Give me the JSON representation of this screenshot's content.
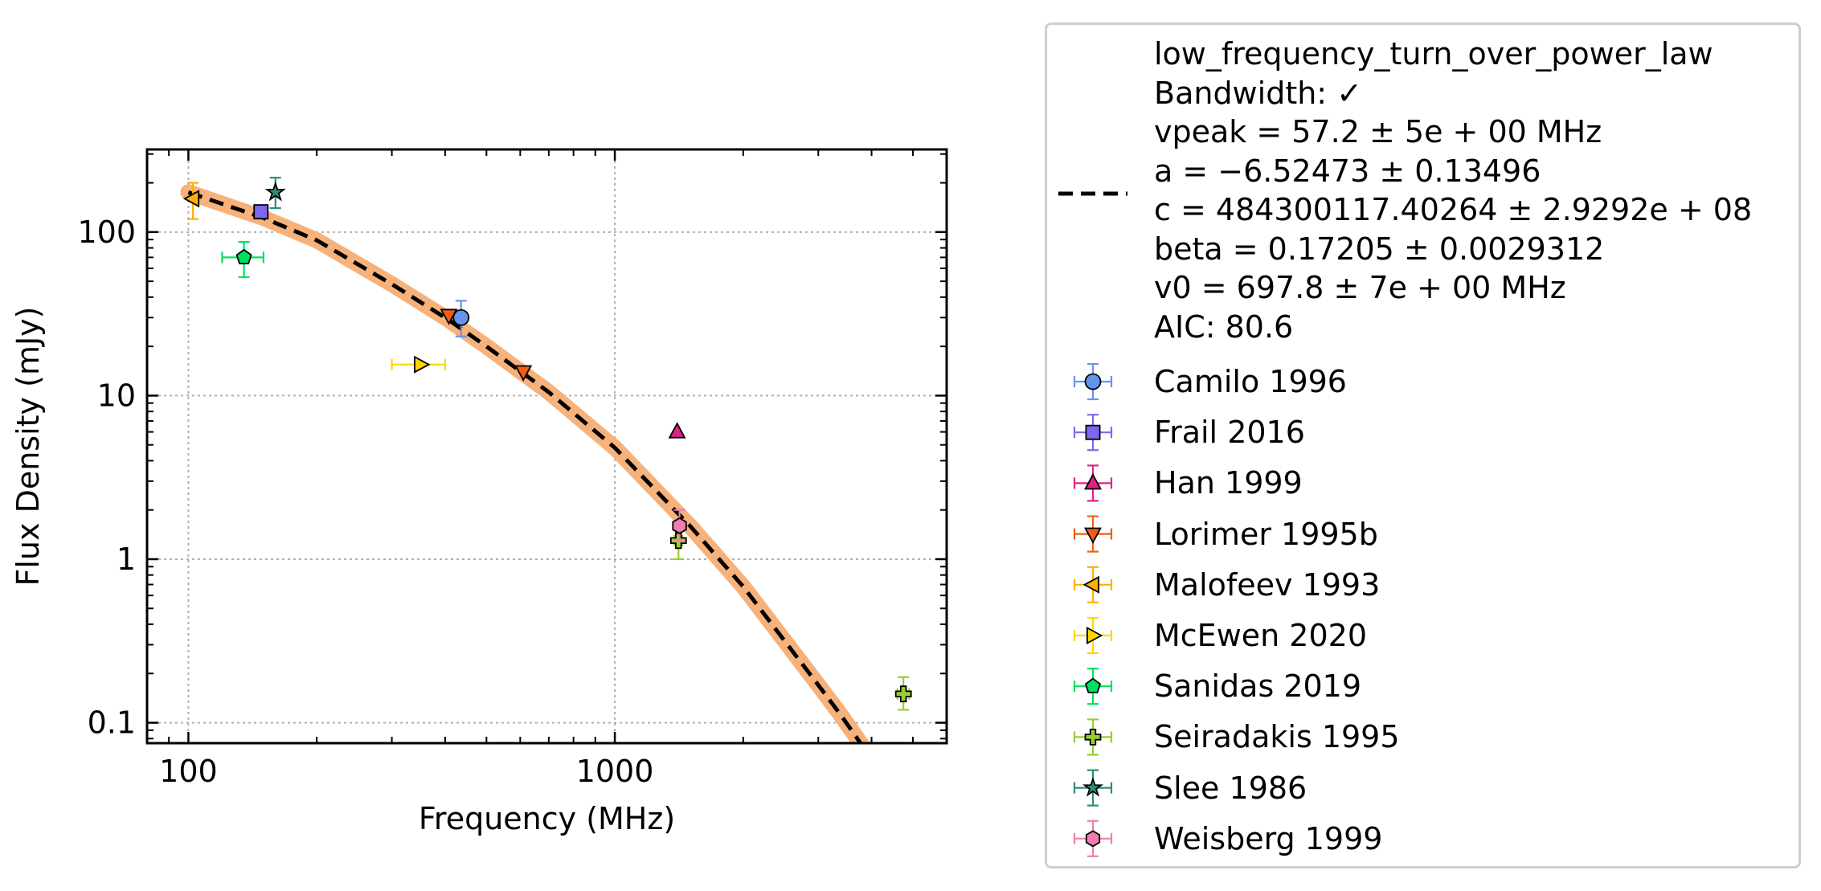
{
  "chart_data": {
    "type": "scatter",
    "xlabel": "Frequency (MHz)",
    "ylabel": "Flux Density (mJy)",
    "x_scale": "log",
    "y_scale": "log",
    "xlim": [
      80,
      6000
    ],
    "ylim": [
      0.075,
      320
    ],
    "grid": true,
    "legend_position": "outside-right",
    "x_ticks": [
      "100",
      "1000"
    ],
    "y_ticks": [
      "0.1",
      "1",
      "10",
      "100"
    ],
    "fit": {
      "label_lines": [
        "low_frequency_turn_over_power_law",
        "Bandwidth: ✓",
        "vpeak = 57.2 ± 5e + 00 MHz",
        "a = −6.52473 ± 0.13496",
        "c = 484300117.40264 ± 2.9292e + 08",
        "beta = 0.17205 ± 0.0029312",
        "v0 = 697.8 ± 7e + 00 MHz",
        "AIC: 80.6"
      ],
      "line_color": "#000000",
      "band_color": "#f7b27b",
      "points": [
        [
          100,
          175
        ],
        [
          150,
          122
        ],
        [
          200,
          89
        ],
        [
          300,
          48
        ],
        [
          400,
          30
        ],
        [
          500,
          20
        ],
        [
          700,
          10.5
        ],
        [
          1000,
          4.8
        ],
        [
          1500,
          1.6
        ],
        [
          2000,
          0.68
        ],
        [
          3000,
          0.17
        ],
        [
          3400,
          0.11
        ],
        [
          4000,
          0.06
        ]
      ]
    },
    "series": [
      {
        "name": "Camilo 1996",
        "marker": "circle",
        "color": "#6495ED",
        "points": [
          {
            "x": 436,
            "y": 30,
            "ylo": 23,
            "yhi": 38,
            "xlo": 436,
            "xhi": 436
          }
        ]
      },
      {
        "name": "Frail 2016",
        "marker": "square",
        "color": "#7B68EE",
        "points": [
          {
            "x": 148,
            "y": 133,
            "ylo": 133,
            "yhi": 133,
            "xlo": 148,
            "xhi": 148
          }
        ]
      },
      {
        "name": "Han 1999",
        "marker": "triangle-up",
        "color": "#E0218A",
        "points": [
          {
            "x": 1400,
            "y": 6,
            "ylo": 6,
            "yhi": 6,
            "xlo": 1400,
            "xhi": 1400
          }
        ]
      },
      {
        "name": "Lorimer 1995b",
        "marker": "triangle-down",
        "color": "#F05E16",
        "points": [
          {
            "x": 408,
            "y": 31,
            "ylo": 31,
            "yhi": 31,
            "xlo": 408,
            "xhi": 408
          },
          {
            "x": 610,
            "y": 14,
            "ylo": 14,
            "yhi": 14,
            "xlo": 610,
            "xhi": 610
          }
        ]
      },
      {
        "name": "Malofeev 1993",
        "marker": "triangle-left",
        "color": "#FFB000",
        "points": [
          {
            "x": 102.5,
            "y": 160,
            "ylo": 120,
            "yhi": 200,
            "xlo": 102.5,
            "xhi": 102.5
          }
        ]
      },
      {
        "name": "McEwen 2020",
        "marker": "triangle-right",
        "color": "#FFD700",
        "points": [
          {
            "x": 350,
            "y": 15.5,
            "ylo": 15.5,
            "yhi": 15.5,
            "xlo": 300,
            "xhi": 400
          }
        ]
      },
      {
        "name": "Sanidas 2019",
        "marker": "pentagon",
        "color": "#00E060",
        "points": [
          {
            "x": 135,
            "y": 70,
            "ylo": 53,
            "yhi": 87,
            "xlo": 120,
            "xhi": 150
          }
        ]
      },
      {
        "name": "Seiradakis 1995",
        "marker": "plus",
        "color": "#9ACD32",
        "points": [
          {
            "x": 1410,
            "y": 1.3,
            "ylo": 1.0,
            "yhi": 1.6,
            "xlo": 1380,
            "xhi": 1440
          },
          {
            "x": 4750,
            "y": 0.15,
            "ylo": 0.12,
            "yhi": 0.19,
            "xlo": 4600,
            "xhi": 4900
          }
        ]
      },
      {
        "name": "Slee 1986",
        "marker": "star",
        "color": "#2E8B7A",
        "points": [
          {
            "x": 160,
            "y": 175,
            "ylo": 140,
            "yhi": 215,
            "xlo": 160,
            "xhi": 160
          }
        ]
      },
      {
        "name": "Weisberg 1999",
        "marker": "hexagon",
        "color": "#F07DB0",
        "points": [
          {
            "x": 1418,
            "y": 1.6,
            "ylo": 1.3,
            "yhi": 2.0,
            "xlo": 1418,
            "xhi": 1418
          }
        ]
      }
    ]
  }
}
